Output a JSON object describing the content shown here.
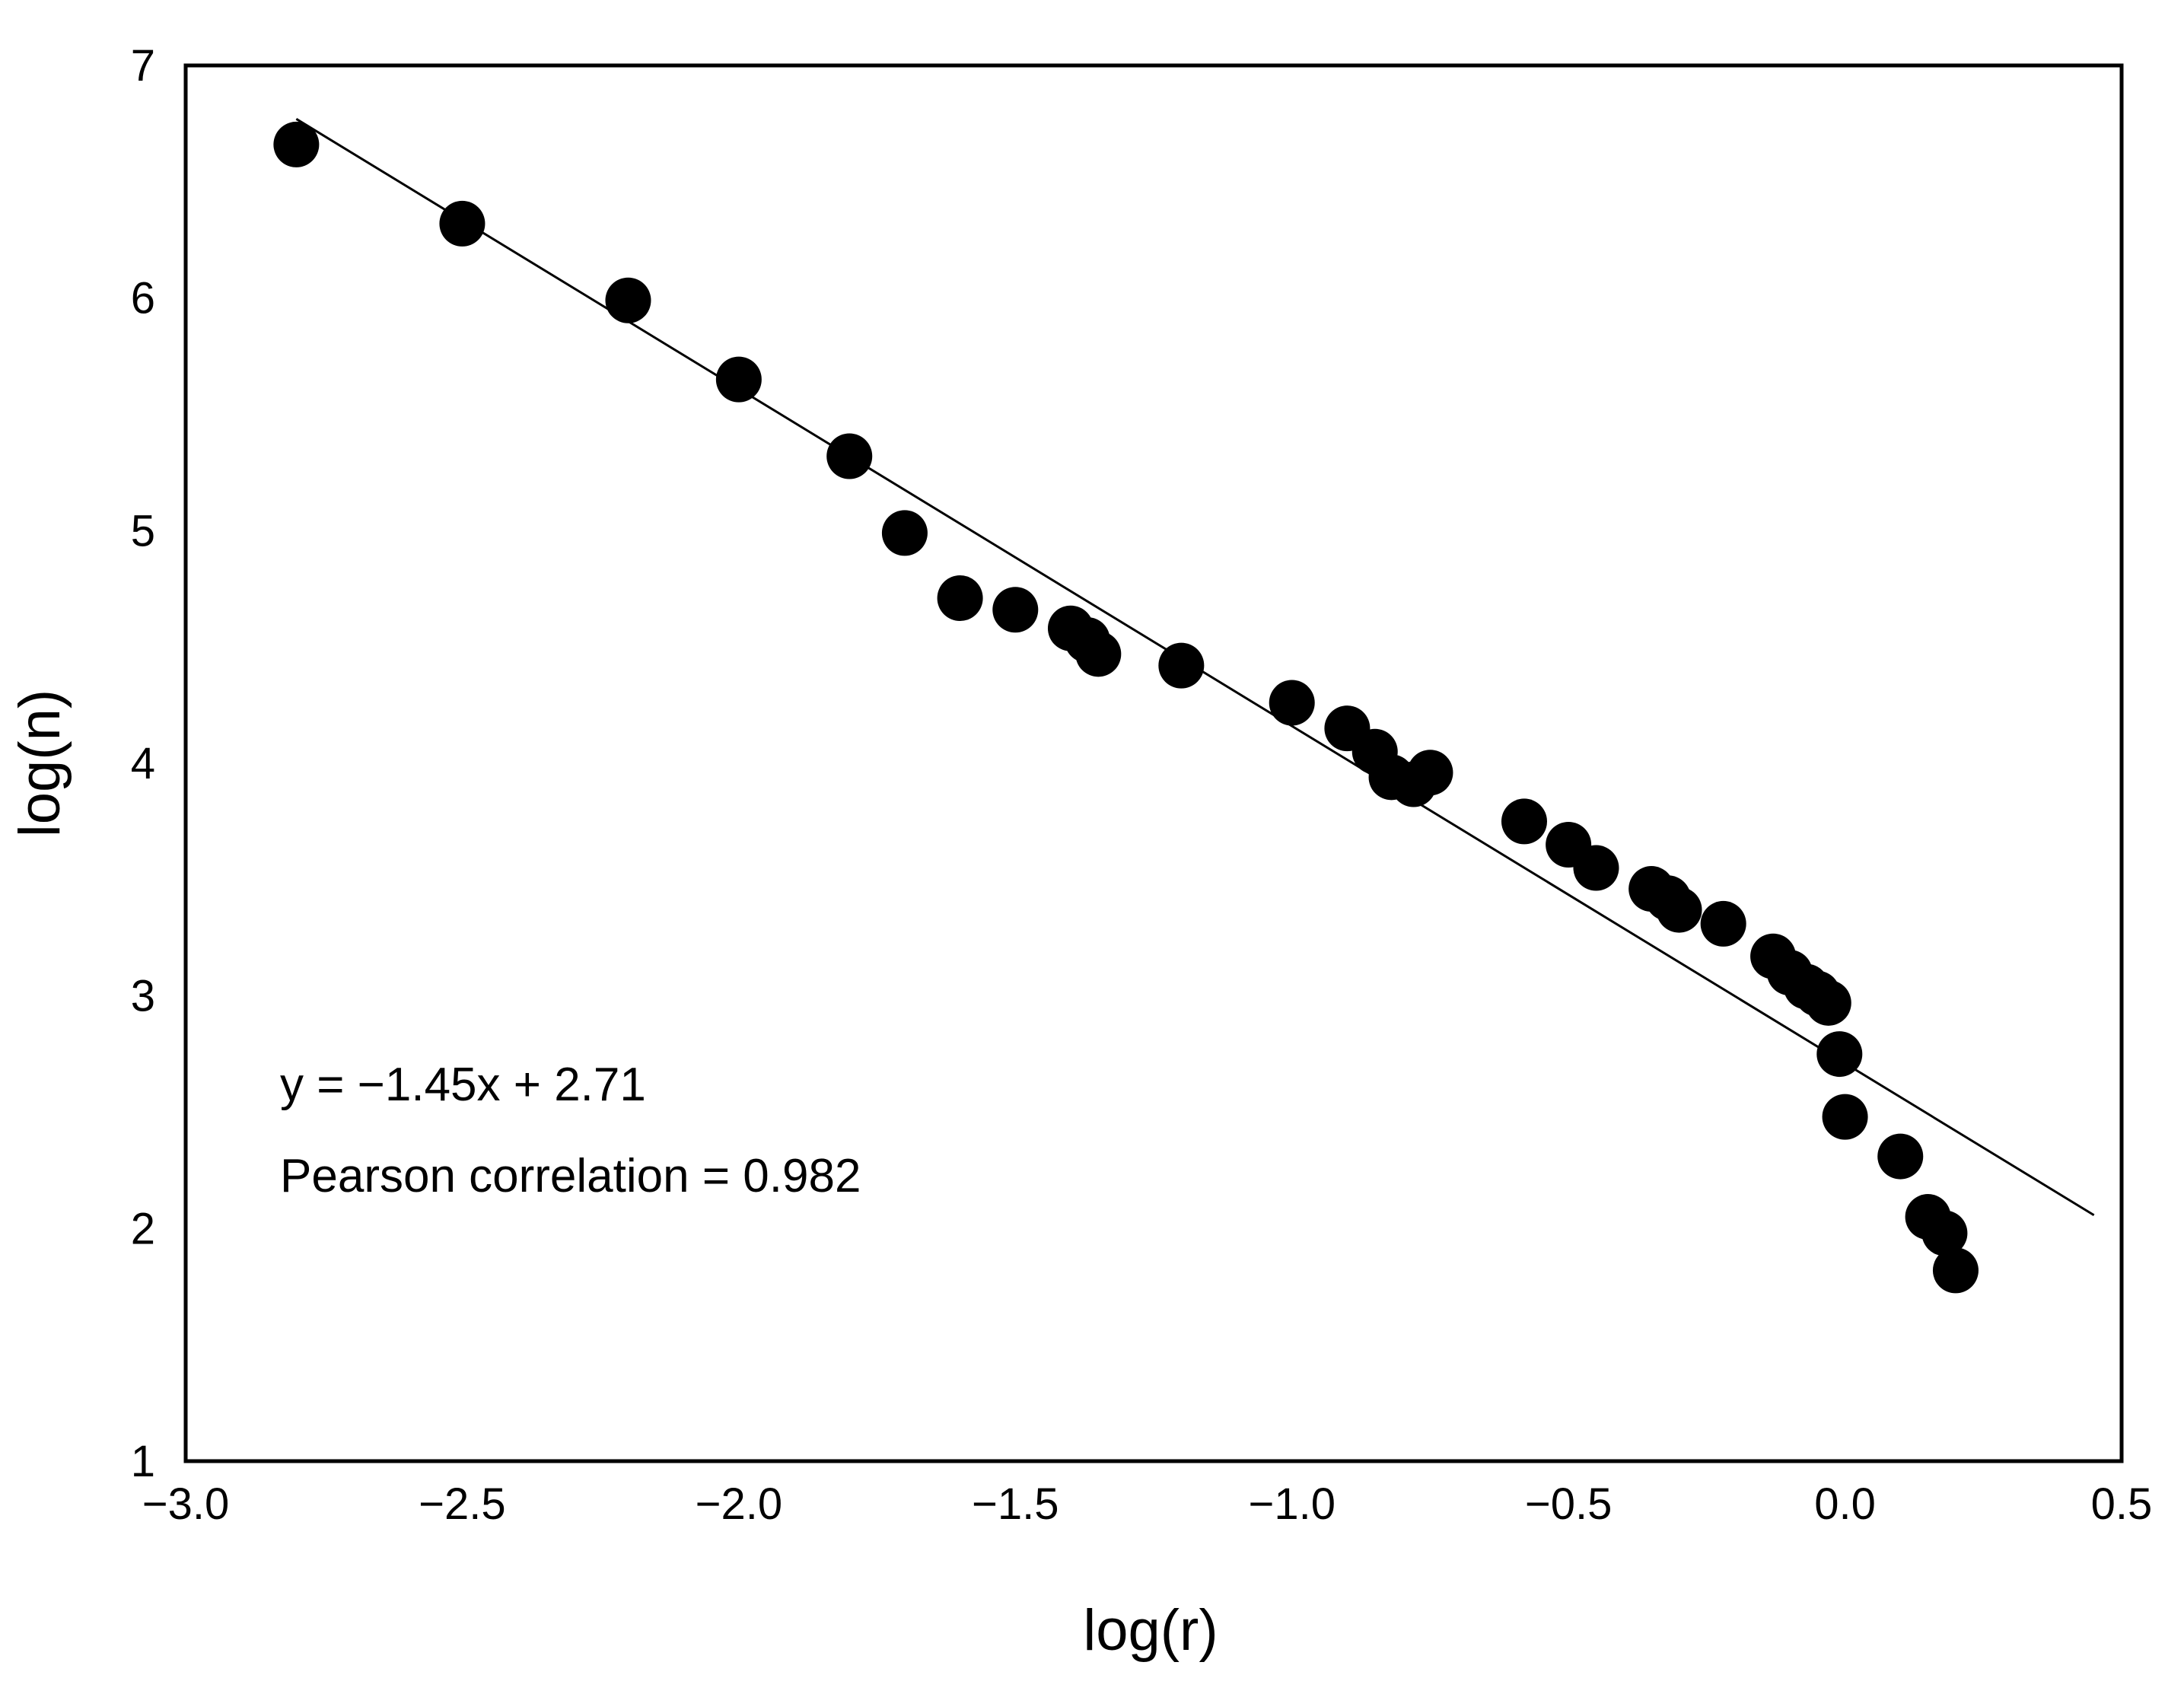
{
  "chart_data": {
    "type": "scatter",
    "title": "",
    "xlabel": "log(r)",
    "ylabel": "log(n)",
    "xlim": [
      -3.0,
      0.5
    ],
    "ylim": [
      1,
      7
    ],
    "xticks": [
      -3.0,
      -2.5,
      -2.0,
      -1.5,
      -1.0,
      -0.5,
      0.0,
      0.5
    ],
    "xtick_labels": [
      "−3.0",
      "−2.5",
      "−2.0",
      "−1.5",
      "−1.0",
      "−0.5",
      "0.0",
      "0.5"
    ],
    "yticks": [
      1,
      2,
      3,
      4,
      5,
      6,
      7
    ],
    "ytick_labels": [
      "1",
      "2",
      "3",
      "4",
      "5",
      "6",
      "7"
    ],
    "grid": false,
    "marker_color": "#000000",
    "line_color": "#000000",
    "points": [
      {
        "x": -2.8,
        "y": 6.66
      },
      {
        "x": -2.5,
        "y": 6.32
      },
      {
        "x": -2.2,
        "y": 5.99
      },
      {
        "x": -2.0,
        "y": 5.65
      },
      {
        "x": -1.8,
        "y": 5.32
      },
      {
        "x": -1.7,
        "y": 4.99
      },
      {
        "x": -1.6,
        "y": 4.71
      },
      {
        "x": -1.5,
        "y": 4.66
      },
      {
        "x": -1.4,
        "y": 4.58
      },
      {
        "x": -1.37,
        "y": 4.53
      },
      {
        "x": -1.35,
        "y": 4.47
      },
      {
        "x": -1.2,
        "y": 4.42
      },
      {
        "x": -1.0,
        "y": 4.26
      },
      {
        "x": -0.9,
        "y": 4.15
      },
      {
        "x": -0.85,
        "y": 4.05
      },
      {
        "x": -0.82,
        "y": 3.94
      },
      {
        "x": -0.78,
        "y": 3.91
      },
      {
        "x": -0.75,
        "y": 3.96
      },
      {
        "x": -0.58,
        "y": 3.75
      },
      {
        "x": -0.5,
        "y": 3.65
      },
      {
        "x": -0.45,
        "y": 3.55
      },
      {
        "x": -0.35,
        "y": 3.46
      },
      {
        "x": -0.32,
        "y": 3.42
      },
      {
        "x": -0.3,
        "y": 3.37
      },
      {
        "x": -0.22,
        "y": 3.31
      },
      {
        "x": -0.13,
        "y": 3.17
      },
      {
        "x": -0.1,
        "y": 3.1
      },
      {
        "x": -0.07,
        "y": 3.04
      },
      {
        "x": -0.05,
        "y": 3.01
      },
      {
        "x": -0.03,
        "y": 2.97
      },
      {
        "x": -0.01,
        "y": 2.75
      },
      {
        "x": 0.0,
        "y": 2.48
      },
      {
        "x": 0.1,
        "y": 2.31
      },
      {
        "x": 0.15,
        "y": 2.05
      },
      {
        "x": 0.18,
        "y": 1.98
      },
      {
        "x": 0.2,
        "y": 1.82
      }
    ],
    "fit_line": {
      "x_start": -2.8,
      "x_end": 0.45,
      "slope": -1.45,
      "intercept": 2.71
    },
    "annotations": [
      "y = −1.45x + 2.71",
      "Pearson correlation = 0.982"
    ]
  }
}
